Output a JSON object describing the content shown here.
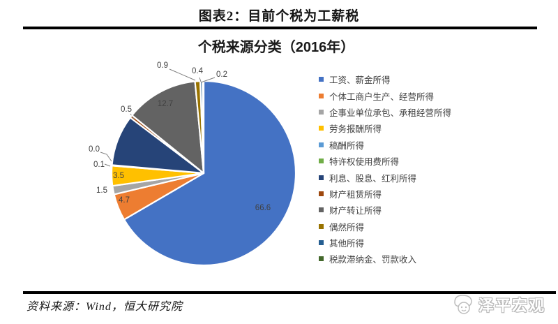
{
  "header": {
    "title": "图表2：目前个税为工薪税"
  },
  "source": {
    "text": "资料来源：Wind，恒大研究院"
  },
  "watermark": {
    "text": "泽平宏观"
  },
  "chart_data": {
    "type": "pie",
    "title": "个税来源分类（2016年）",
    "unit": "percent",
    "start_angle_deg": 0,
    "direction": "clockwise",
    "legend_position": "right",
    "label_text_color": "#404040",
    "leader_line_color": "#808080",
    "slices": [
      {
        "label": "工资、薪金所得",
        "value": 66.6,
        "display": "66.6",
        "color": "#4472C4",
        "data_label_visible": true
      },
      {
        "label": "个体工商户生产、经营所得",
        "value": 4.7,
        "display": "4.7",
        "color": "#ED7D31",
        "data_label_visible": true
      },
      {
        "label": "企事业单位承包、承租经营所得",
        "value": 1.5,
        "display": "1.5",
        "color": "#A5A5A5",
        "data_label_visible": true
      },
      {
        "label": "劳务报酬所得",
        "value": 3.5,
        "display": "3.5",
        "color": "#FFC000",
        "data_label_visible": true
      },
      {
        "label": "稿酬所得",
        "value": 0.1,
        "display": "0.1",
        "color": "#5B9BD5",
        "data_label_visible": true
      },
      {
        "label": "特许权使用费所得",
        "value": 0.0,
        "display": "0.0",
        "color": "#70AD47",
        "data_label_visible": true
      },
      {
        "label": "利息、股息、红利所得",
        "value": 8.9,
        "display": "",
        "color": "#264478",
        "data_label_visible": false
      },
      {
        "label": "财产租赁所得",
        "value": 0.5,
        "display": "0.5",
        "color": "#9E480E",
        "data_label_visible": true
      },
      {
        "label": "财产转让所得",
        "value": 12.7,
        "display": "12.7",
        "color": "#636363",
        "data_label_visible": true
      },
      {
        "label": "偶然所得",
        "value": 0.9,
        "display": "0.9",
        "color": "#997300",
        "data_label_visible": true
      },
      {
        "label": "其他所得",
        "value": 0.4,
        "display": "0.4",
        "color": "#255E91",
        "data_label_visible": true
      },
      {
        "label": "税款滞纳金、罚款收入",
        "value": 0.2,
        "display": "0.2",
        "color": "#43682B",
        "data_label_visible": true
      }
    ]
  }
}
